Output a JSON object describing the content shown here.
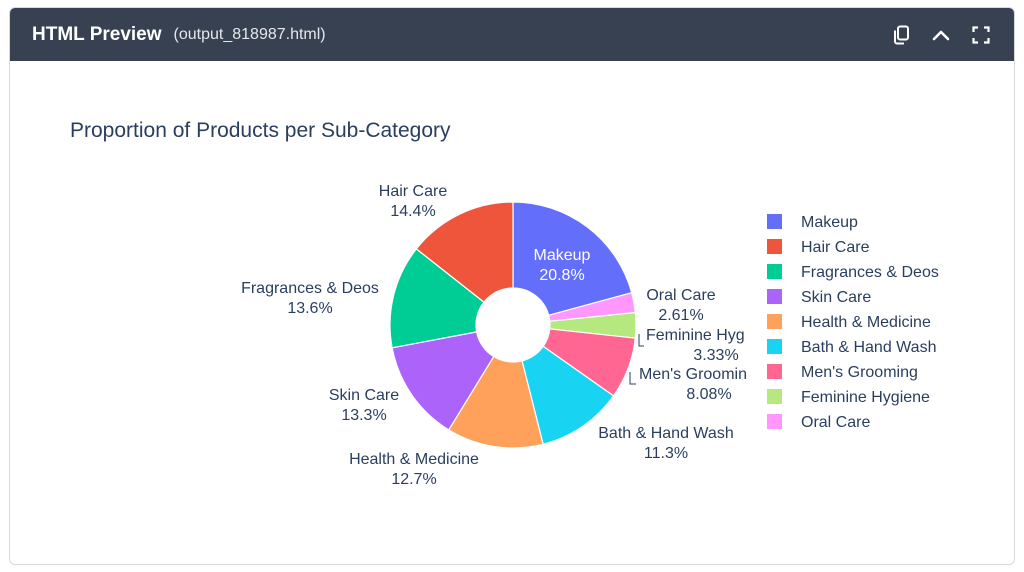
{
  "window": {
    "title": "HTML Preview",
    "filename": "(output_818987.html)",
    "icons": [
      "copy-icon",
      "chevron-up-icon",
      "fullscreen-icon"
    ]
  },
  "chart_data": {
    "type": "pie",
    "hole": true,
    "title": "Proportion of Products per Sub-Category",
    "legend_position": "right",
    "slices": [
      {
        "label": "Makeup",
        "value": 20.8,
        "display": "20.8%",
        "color": "#636efa"
      },
      {
        "label": "Oral Care",
        "value": 2.61,
        "display": "2.61%",
        "color": "#ff97ff"
      },
      {
        "label": "Feminine Hygiene",
        "value": 3.33,
        "display": "3.33%",
        "color": "#b6e880"
      },
      {
        "label": "Men's Grooming",
        "value": 8.08,
        "display": "8.08%",
        "color": "#ff6692"
      },
      {
        "label": "Bath & Hand Wash",
        "value": 11.3,
        "display": "11.3%",
        "color": "#19d3f3"
      },
      {
        "label": "Health & Medicine",
        "value": 12.7,
        "display": "12.7%",
        "color": "#ffa15a"
      },
      {
        "label": "Skin Care",
        "value": 13.3,
        "display": "13.3%",
        "color": "#ab63fa"
      },
      {
        "label": "Fragrances & Deos",
        "value": 13.6,
        "display": "13.6%",
        "color": "#00cc96"
      },
      {
        "label": "Hair Care",
        "value": 14.4,
        "display": "14.4%",
        "color": "#ef553b"
      }
    ],
    "outside_label_texts": {
      "Feminine Hygiene": "Feminine Hyg",
      "Men's Grooming": "Men's Groomin"
    },
    "legend": [
      {
        "label": "Makeup",
        "color": "#636efa"
      },
      {
        "label": "Hair Care",
        "color": "#ef553b"
      },
      {
        "label": "Fragrances & Deos",
        "color": "#00cc96"
      },
      {
        "label": "Skin Care",
        "color": "#ab63fa"
      },
      {
        "label": "Health & Medicine",
        "color": "#ffa15a"
      },
      {
        "label": "Bath & Hand Wash",
        "color": "#19d3f3"
      },
      {
        "label": "Men's Grooming",
        "color": "#ff6692"
      },
      {
        "label": "Feminine Hygiene",
        "color": "#b6e880"
      },
      {
        "label": "Oral Care",
        "color": "#ff97ff"
      }
    ]
  }
}
